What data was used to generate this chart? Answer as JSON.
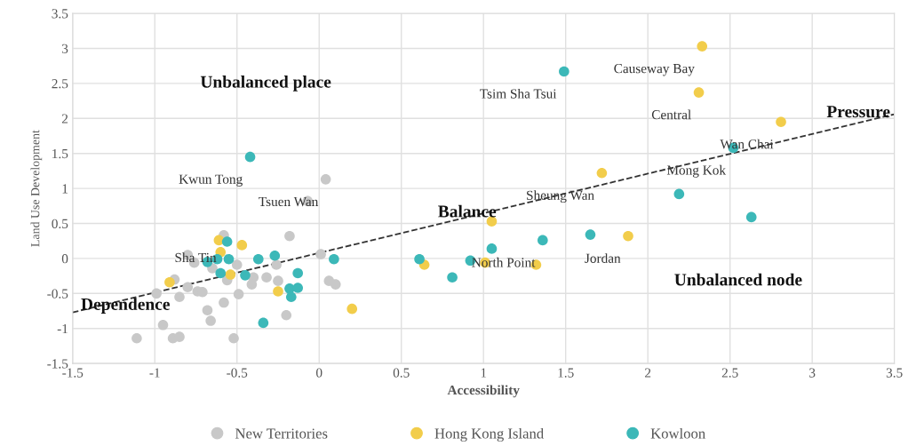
{
  "chart_data": {
    "type": "scatter",
    "xlabel": "Accessibility",
    "ylabel": "Land Use Development",
    "xlim": [
      -1.5,
      3.5
    ],
    "ylim": [
      -1.5,
      3.5
    ],
    "xticks": [
      -1.5,
      -1,
      -0.5,
      0,
      0.5,
      1,
      1.5,
      2,
      2.5,
      3,
      3.5
    ],
    "yticks": [
      -1.5,
      -1,
      -0.5,
      0,
      0.5,
      1,
      1.5,
      2,
      2.5,
      3,
      3.5
    ],
    "grid": true,
    "legend": "bottom",
    "series": [
      {
        "name": "New Territories",
        "marker": "circle",
        "color": "#c8c8c8",
        "x": [
          0.04,
          -0.07,
          -0.58,
          -0.18,
          -0.8,
          -0.76,
          -0.5,
          -0.26,
          0.01,
          -0.65,
          -0.56,
          -0.4,
          -0.32,
          -0.25,
          -0.41,
          -0.88,
          -0.8,
          -0.74,
          -0.71,
          -0.85,
          -0.49,
          0.06,
          0.1,
          -0.99,
          -0.58,
          -0.68,
          -0.66,
          -0.2,
          -0.95,
          -1.11,
          -0.89,
          -0.85,
          -0.52
        ],
        "values": [
          1.13,
          0.82,
          0.33,
          0.32,
          0.05,
          -0.06,
          -0.09,
          -0.09,
          0.06,
          -0.14,
          -0.31,
          -0.27,
          -0.27,
          -0.32,
          -0.37,
          -0.3,
          -0.41,
          -0.47,
          -0.48,
          -0.55,
          -0.51,
          -0.32,
          -0.37,
          -0.5,
          -0.63,
          -0.74,
          -0.89,
          -0.81,
          -0.95,
          -1.14,
          -1.14,
          -1.12,
          -1.14
        ]
      },
      {
        "name": "Hong Kong Island",
        "marker": "circle",
        "color": "#f2cd4b",
        "x": [
          -0.61,
          -0.47,
          -0.6,
          -0.54,
          -0.91,
          -0.25,
          0.2,
          1.05,
          0.64,
          1.01,
          1.32,
          1.88,
          1.72,
          2.33,
          2.31,
          2.81
        ],
        "values": [
          0.26,
          0.19,
          0.09,
          -0.23,
          -0.34,
          -0.47,
          -0.72,
          0.53,
          -0.09,
          -0.06,
          -0.09,
          0.32,
          1.22,
          3.03,
          2.37,
          1.95
        ]
      },
      {
        "name": "Kowloon",
        "marker": "circle",
        "color": "#3cb8b8",
        "x": [
          -0.42,
          -0.56,
          -0.68,
          -0.62,
          -0.55,
          -0.37,
          -0.27,
          0.09,
          -0.6,
          -0.45,
          -0.13,
          -0.18,
          -0.13,
          -0.17,
          -0.34,
          0.61,
          0.92,
          0.81,
          1.05,
          1.36,
          1.65,
          2.19,
          2.63,
          2.52,
          1.49
        ],
        "values": [
          1.45,
          0.24,
          -0.05,
          -0.01,
          -0.01,
          -0.01,
          0.04,
          -0.01,
          -0.21,
          -0.24,
          -0.21,
          -0.43,
          -0.42,
          -0.55,
          -0.92,
          -0.01,
          -0.03,
          -0.27,
          0.14,
          0.26,
          0.34,
          0.92,
          0.59,
          1.58,
          2.67
        ]
      },
      {
        "type": "line",
        "color": "#333333",
        "line_style": "dashed",
        "x": [
          -1.5,
          3.5
        ],
        "values": [
          -0.77,
          2.06
        ]
      }
    ],
    "annotations": [
      {
        "text": "Causeway Bay",
        "x": 2.33,
        "y": 3.03
      },
      {
        "text": "Tsim Sha Tsui",
        "x": 1.49,
        "y": 2.67
      },
      {
        "text": "Central",
        "x": 2.31,
        "y": 2.37
      },
      {
        "text": "Wan Chai",
        "x": 2.81,
        "y": 1.95
      },
      {
        "text": "Mong Kok",
        "x": 2.52,
        "y": 1.58
      },
      {
        "text": "Sheung Wan",
        "x": 1.72,
        "y": 1.22
      },
      {
        "text": "Kwun Tong",
        "x": -0.42,
        "y": 1.45
      },
      {
        "text": "Tsuen Wan",
        "x": 0.04,
        "y": 1.13
      },
      {
        "text": "Sha Tin",
        "x": -0.58,
        "y": 0.33
      },
      {
        "text": "Jordan",
        "x": 1.88,
        "y": 0.32
      },
      {
        "text": "North Point",
        "x": 1.36,
        "y": 0.26
      },
      "Unbalanced place",
      {
        "text": "Balance",
        "x": 0.9,
        "y": 0.65
      },
      "Pressure",
      "Dependence",
      "Unbalanced node"
    ]
  }
}
